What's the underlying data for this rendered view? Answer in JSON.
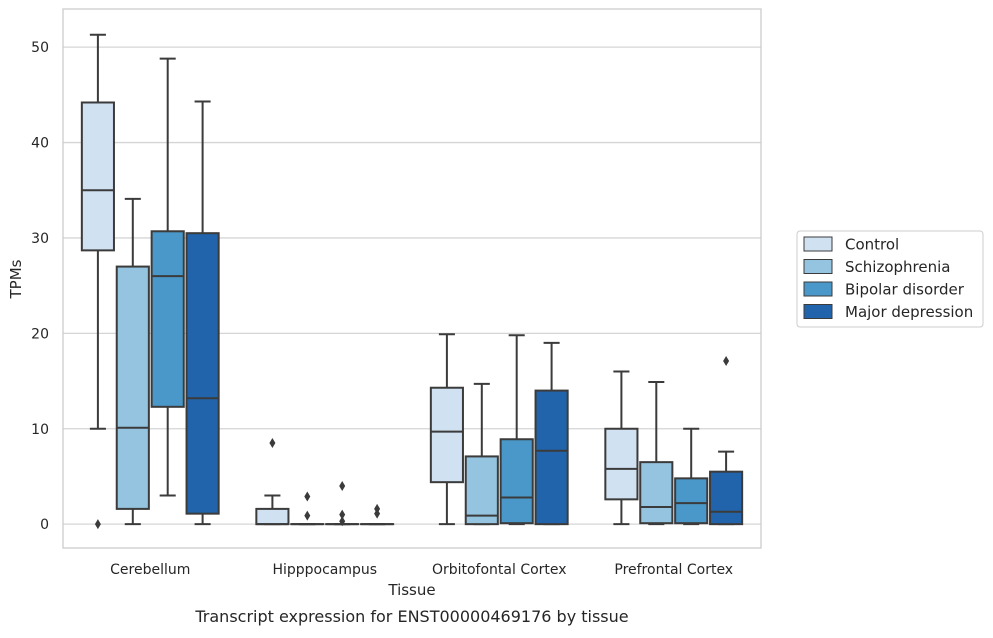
{
  "chart_data": {
    "type": "boxplot",
    "caption": "Transcript expression for ENST00000469176 by tissue",
    "xlabel": "Tissue",
    "ylabel": "TPMs",
    "ylim": [
      -2.5,
      54
    ],
    "yticks": [
      0,
      10,
      20,
      30,
      40,
      50
    ],
    "grid": "horizontal",
    "legend_placement": "right",
    "categories": [
      "Cerebellum",
      "Hipppocampus",
      "Orbitofontal Cortex",
      "Prefrontal Cortex"
    ],
    "colors": {
      "Control": "#d0e1f2",
      "Schizophrenia": "#94c4df",
      "Bipolar disorder": "#4a98c9",
      "Major depression": "#2164ab",
      "line": "#3b3b3b",
      "grid": "#d5d5d5"
    },
    "series": [
      {
        "name": "Control",
        "boxes": [
          {
            "whislo": 10,
            "q1": 28.7,
            "med": 35,
            "q3": 44.2,
            "whishi": 51.3,
            "fliers": [
              0
            ]
          },
          {
            "whislo": 0,
            "q1": 0,
            "med": 0,
            "q3": 1.6,
            "whishi": 3,
            "fliers": [
              8.5
            ]
          },
          {
            "whislo": 0,
            "q1": 4.4,
            "med": 9.7,
            "q3": 14.3,
            "whishi": 19.9,
            "fliers": []
          },
          {
            "whislo": 0,
            "q1": 2.6,
            "med": 5.8,
            "q3": 10,
            "whishi": 16,
            "fliers": []
          }
        ]
      },
      {
        "name": "Schizophrenia",
        "boxes": [
          {
            "whislo": 0,
            "q1": 1.6,
            "med": 10.1,
            "q3": 27,
            "whishi": 34.1,
            "fliers": []
          },
          {
            "whislo": 0,
            "q1": 0,
            "med": 0,
            "q3": 0,
            "whishi": 0,
            "fliers": [
              0.9,
              2.9
            ]
          },
          {
            "whislo": 0,
            "q1": 0,
            "med": 0.9,
            "q3": 7.1,
            "whishi": 14.7,
            "fliers": []
          },
          {
            "whislo": 0,
            "q1": 0.1,
            "med": 1.8,
            "q3": 6.5,
            "whishi": 14.9,
            "fliers": []
          }
        ]
      },
      {
        "name": "Bipolar disorder",
        "boxes": [
          {
            "whislo": 3,
            "q1": 12.3,
            "med": 26,
            "q3": 30.7,
            "whishi": 48.8,
            "fliers": []
          },
          {
            "whislo": 0,
            "q1": 0,
            "med": 0,
            "q3": 0,
            "whishi": 0,
            "fliers": [
              0.3,
              1,
              4
            ]
          },
          {
            "whislo": 0,
            "q1": 0.1,
            "med": 2.8,
            "q3": 8.9,
            "whishi": 19.8,
            "fliers": []
          },
          {
            "whislo": 0,
            "q1": 0.1,
            "med": 2.2,
            "q3": 4.8,
            "whishi": 10,
            "fliers": []
          }
        ]
      },
      {
        "name": "Major depression",
        "boxes": [
          {
            "whislo": 0,
            "q1": 1.1,
            "med": 13.2,
            "q3": 30.5,
            "whishi": 44.3,
            "fliers": []
          },
          {
            "whislo": 0,
            "q1": 0,
            "med": 0,
            "q3": 0,
            "whishi": 0,
            "fliers": [
              1.1,
              1.6
            ]
          },
          {
            "whislo": 0,
            "q1": 0,
            "med": 7.7,
            "q3": 14,
            "whishi": 19,
            "fliers": []
          },
          {
            "whislo": 0,
            "q1": 0,
            "med": 1.3,
            "q3": 5.5,
            "whishi": 7.6,
            "fliers": [
              17.1
            ]
          }
        ]
      }
    ]
  }
}
